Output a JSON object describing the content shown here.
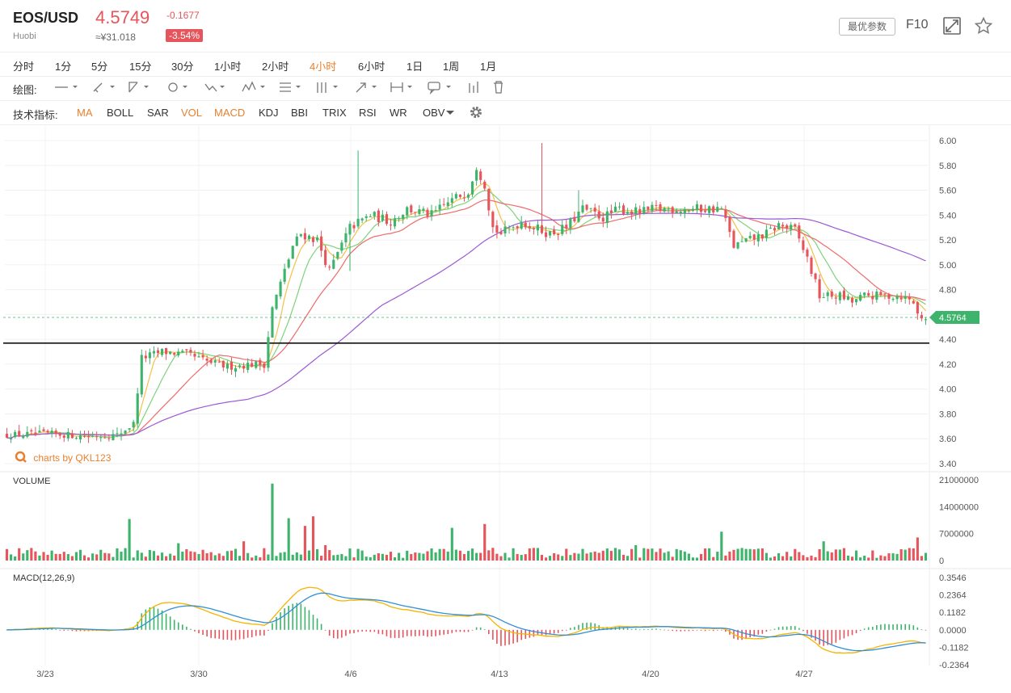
{
  "header": {
    "symbol": "EOS/USD",
    "exchange": "Huobi",
    "price": "4.5749",
    "cny": "≈¥31.018",
    "change": "-0.1677",
    "change_pct": "-3.54%",
    "params_button": "最优参数",
    "f10": "F10",
    "icons": [
      "fullscreen-icon",
      "star-icon"
    ]
  },
  "periods": [
    "分时",
    "1分",
    "5分",
    "15分",
    "30分",
    "1小时",
    "2小时",
    "4小时",
    "6小时",
    "1日",
    "1周",
    "1月"
  ],
  "active_period": "4小时",
  "drawing_label": "绘图:",
  "drawing_tools": [
    "line-tool-icon",
    "pen-tool-icon",
    "ray-tool-icon",
    "circle-tool-icon",
    "polyline-tool-icon",
    "pattern-tool-icon",
    "fib-tool-icon",
    "channel-tool-icon",
    "arrow-tool-icon",
    "measure-tool-icon",
    "comment-tool-icon",
    "bars-tool-icon",
    "trash-icon"
  ],
  "indicators_label": "技术指标:",
  "indicators": [
    {
      "label": "MA",
      "active": true
    },
    {
      "label": "BOLL",
      "active": false
    },
    {
      "label": "SAR",
      "active": false
    },
    {
      "label": "VOL",
      "active": true
    },
    {
      "label": "MACD",
      "active": true
    },
    {
      "label": "KDJ",
      "active": false
    },
    {
      "label": "BBI",
      "active": false
    },
    {
      "label": "TRIX",
      "active": false
    },
    {
      "label": "RSI",
      "active": false
    },
    {
      "label": "WR",
      "active": false
    },
    {
      "label": "OBV",
      "active": false
    }
  ],
  "watermark": "charts by QKL123",
  "colors": {
    "up": "#3db36b",
    "down": "#e5555b",
    "active": "#e8802f",
    "ma5": "#f5c04a",
    "ma10": "#7fd27a",
    "ma20": "#ef6a6a",
    "ma60": "#9b59d6",
    "dif": "#f5b400",
    "dea": "#2f8fd8"
  },
  "chart_data": [
    {
      "type": "candlestick",
      "x_ticks": [
        "3/23",
        "3/30",
        "4/6",
        "4/13",
        "4/20",
        "4/27"
      ],
      "y_ticks": [
        "6.00",
        "5.80",
        "5.60",
        "5.40",
        "5.20",
        "5.00",
        "4.80",
        "4.60",
        "4.40",
        "4.20",
        "4.00",
        "3.80",
        "3.60",
        "3.40"
      ],
      "ylim": [
        3.4,
        6.0
      ],
      "last_price_label": "4.5764",
      "horizontal_line": 4.37,
      "close_anchors": [
        [
          0,
          3.63
        ],
        [
          10,
          3.64
        ],
        [
          20,
          3.62
        ],
        [
          27,
          3.63
        ],
        [
          31,
          3.72
        ],
        [
          33,
          4.25
        ],
        [
          38,
          4.3
        ],
        [
          44,
          4.28
        ],
        [
          49,
          4.22
        ],
        [
          54,
          4.18
        ],
        [
          60,
          4.2
        ],
        [
          63,
          4.2
        ],
        [
          65,
          4.65
        ],
        [
          70,
          5.15
        ],
        [
          72,
          5.25
        ],
        [
          76,
          5.2
        ],
        [
          79,
          4.95
        ],
        [
          84,
          5.3
        ],
        [
          89,
          5.4
        ],
        [
          94,
          5.35
        ],
        [
          98,
          5.45
        ],
        [
          104,
          5.4
        ],
        [
          108,
          5.5
        ],
        [
          113,
          5.6
        ],
        [
          115,
          5.8
        ],
        [
          117,
          5.65
        ],
        [
          119,
          5.3
        ],
        [
          121,
          5.25
        ],
        [
          126,
          5.35
        ],
        [
          129,
          5.3
        ],
        [
          133,
          5.25
        ],
        [
          137,
          5.3
        ],
        [
          141,
          5.45
        ],
        [
          146,
          5.38
        ],
        [
          150,
          5.45
        ],
        [
          155,
          5.42
        ],
        [
          159,
          5.45
        ],
        [
          164,
          5.45
        ],
        [
          169,
          5.45
        ],
        [
          175,
          5.45
        ],
        [
          178,
          5.15
        ],
        [
          182,
          5.2
        ],
        [
          186,
          5.25
        ],
        [
          189,
          5.32
        ],
        [
          193,
          5.28
        ],
        [
          196,
          5.05
        ],
        [
          199,
          4.75
        ],
        [
          204,
          4.75
        ],
        [
          207,
          4.7
        ],
        [
          210,
          4.75
        ],
        [
          214,
          4.75
        ],
        [
          219,
          4.75
        ],
        [
          222,
          4.7
        ],
        [
          223,
          4.6
        ],
        [
          225,
          4.57
        ]
      ],
      "ma_periods": [
        5,
        10,
        20,
        60
      ]
    },
    {
      "type": "bar",
      "name": "VOLUME",
      "y_ticks": [
        "21000000",
        "14000000",
        "7000000",
        "0"
      ],
      "ylim": [
        0,
        21000000
      ],
      "spikes": [
        [
          30,
          10800000
        ],
        [
          42,
          4500000
        ],
        [
          58,
          5000000
        ],
        [
          65,
          20000000
        ],
        [
          69,
          11000000
        ],
        [
          73,
          9000000
        ],
        [
          75,
          11500000
        ],
        [
          78,
          4000000
        ],
        [
          109,
          8500000
        ],
        [
          117,
          9500000
        ],
        [
          154,
          4000000
        ],
        [
          175,
          7500000
        ],
        [
          182,
          3000000
        ],
        [
          200,
          5000000
        ],
        [
          223,
          6000000
        ]
      ]
    },
    {
      "type": "line",
      "name": "MACD(12,26,9)",
      "y_ticks": [
        "0.3546",
        "0.2364",
        "0.1182",
        "0.0000",
        "-0.1182",
        "-0.2364"
      ],
      "ylim": [
        -0.2364,
        0.3546
      ],
      "series": [
        "DIF",
        "DEA",
        "MACD histogram"
      ]
    }
  ]
}
